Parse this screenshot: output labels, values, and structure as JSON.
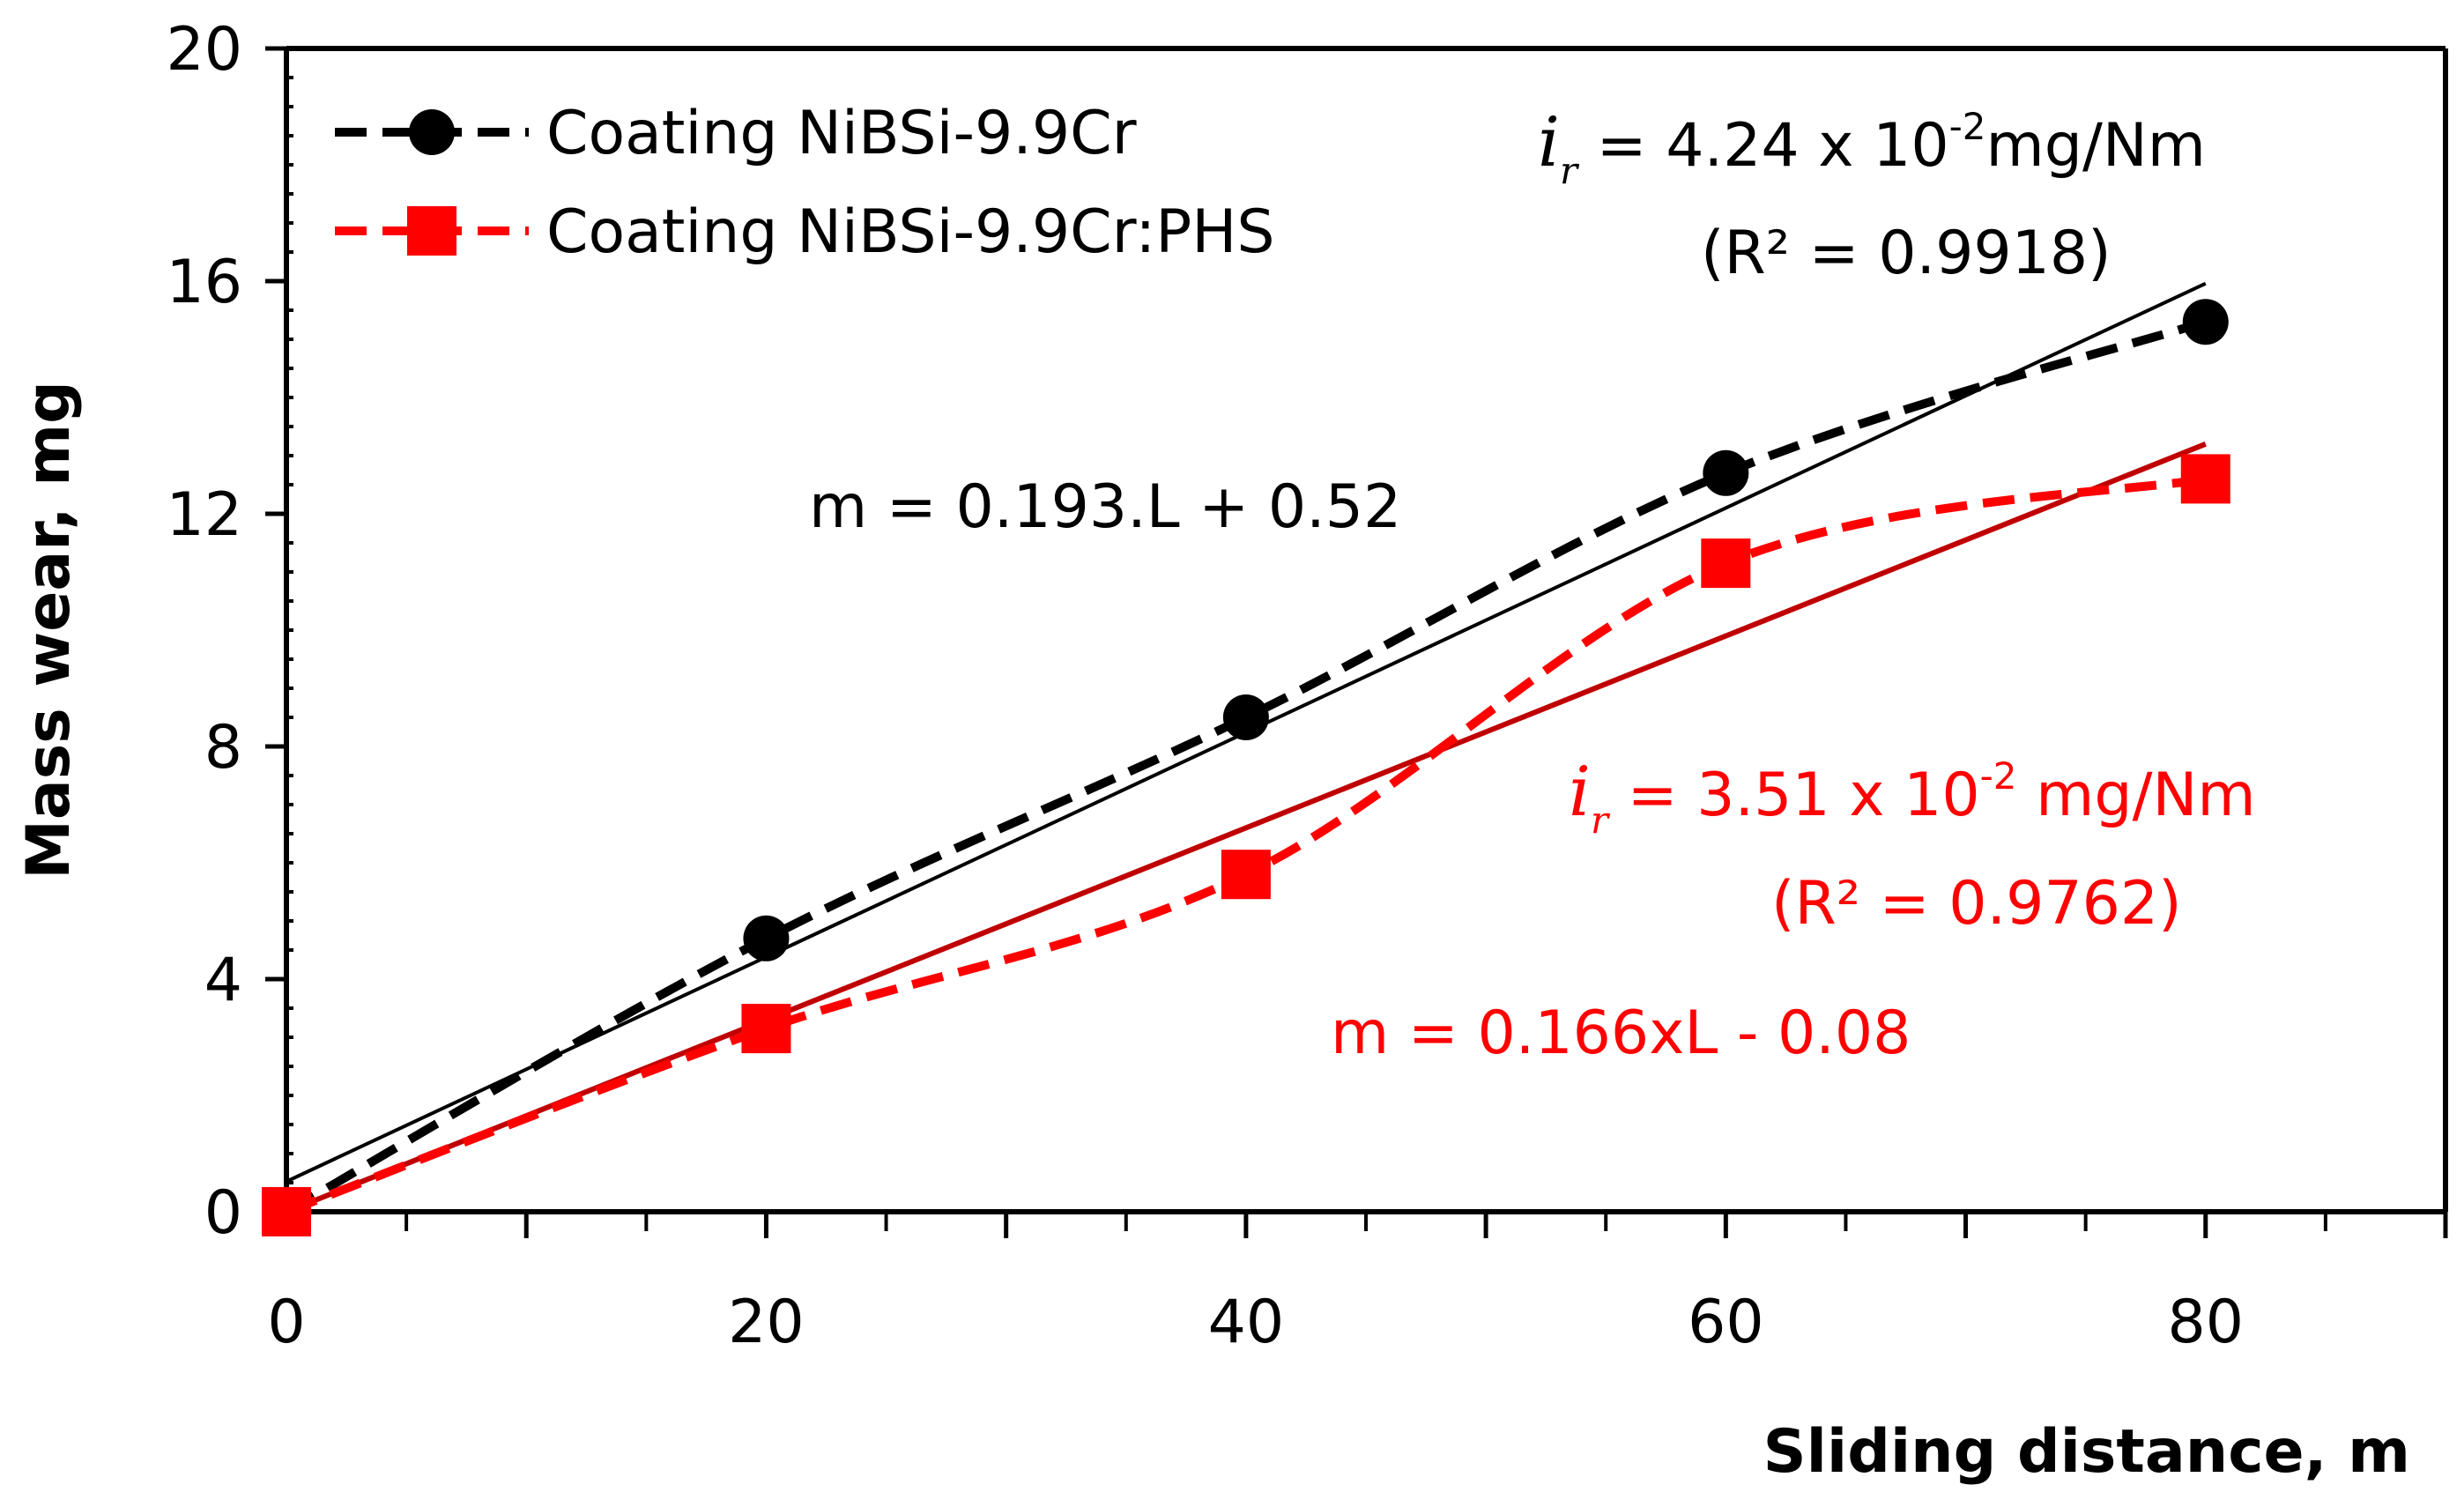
{
  "chart_data": {
    "type": "line",
    "title": "",
    "xlabel": "Sliding distance, m",
    "ylabel": "Mass wear, mg",
    "xlim": [
      0,
      90
    ],
    "ylim": [
      0,
      20
    ],
    "x_ticks": [
      0,
      20,
      40,
      60,
      80
    ],
    "y_ticks": [
      0,
      4,
      8,
      12,
      16,
      20
    ],
    "x_tick_labels": [
      "0",
      "20",
      "40",
      "60",
      "80"
    ],
    "y_tick_labels": [
      "0",
      "4",
      "8",
      "12",
      "16",
      "20"
    ],
    "legend_position": "top-left",
    "series": [
      {
        "name": "Coating NiBSi-9.9Cr",
        "color": "#000000",
        "marker": "circle",
        "style": "dashed-smooth",
        "x": [
          0,
          20,
          40,
          60,
          80
        ],
        "y": [
          0.0,
          4.7,
          8.5,
          12.7,
          15.3
        ],
        "fit": {
          "slope": 0.193,
          "intercept": 0.52,
          "color": "#000000"
        }
      },
      {
        "name": "Coating NiBSi-9.9Cr:PHS",
        "color": "#ff0000",
        "marker": "square",
        "style": "dashed-smooth",
        "x": [
          0,
          20,
          40,
          60,
          80
        ],
        "y": [
          0.0,
          3.15,
          5.8,
          11.15,
          12.6
        ],
        "fit": {
          "slope": 0.166,
          "intercept": -0.08,
          "color": "#c00000"
        }
      }
    ],
    "annotations": {
      "black_rate": {
        "symbol": "i",
        "subscript": "r",
        "text": " = 4.24 x 10",
        "exponent": "-2",
        "unit": "mg/Nm"
      },
      "black_r2": "(R² = 0.9918)",
      "black_equation": "m = 0.193.L + 0.52",
      "red_rate": {
        "symbol": "i",
        "subscript": "r",
        "text": " = 3.51 x 10",
        "exponent": "-2",
        "unit": " mg/Nm"
      },
      "red_r2": "(R² = 0.9762)",
      "red_equation": "m = 0.166xL - 0.08"
    },
    "annotation_colors": {
      "black": "#000000",
      "red": "#ff0000"
    }
  }
}
